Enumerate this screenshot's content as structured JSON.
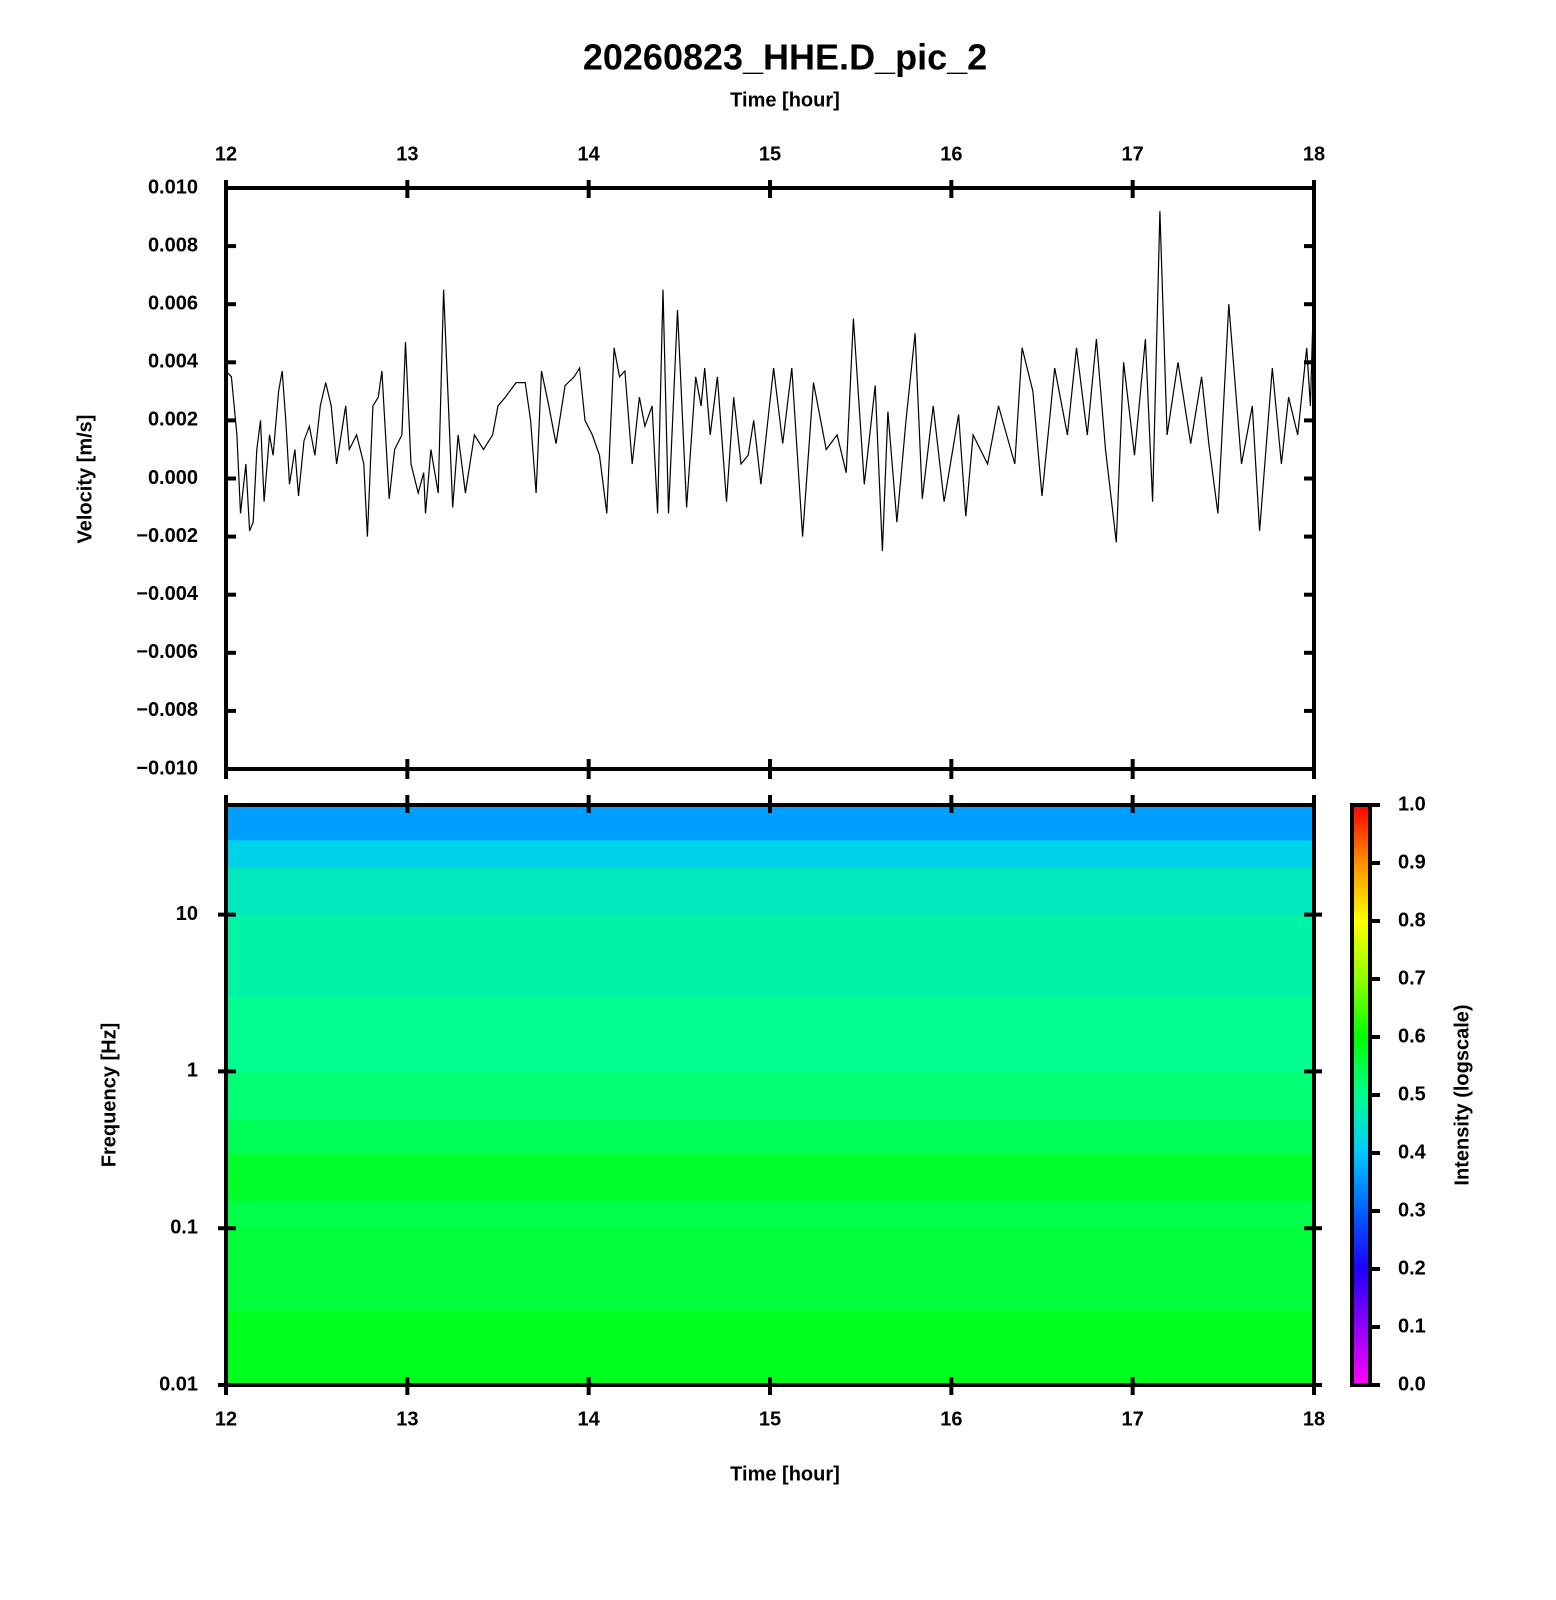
{
  "chart_data": [
    {
      "type": "line",
      "title": "20260823_HHE.D_pic_2",
      "x_label": "Time [hour]",
      "y_label": "Velocity [m/s]",
      "color": "#000000",
      "xlim": [
        12,
        18
      ],
      "xticks": [
        12,
        13,
        14,
        15,
        16,
        17,
        18
      ],
      "ylim": [
        -0.01,
        0.01
      ],
      "yticks": [
        {
          "value": 0.01,
          "label": "0.010"
        },
        {
          "value": 0.008,
          "label": "0.008"
        },
        {
          "value": 0.006,
          "label": "0.006"
        },
        {
          "value": 0.004,
          "label": "0.004"
        },
        {
          "value": 0.002,
          "label": "0.002"
        },
        {
          "value": 0,
          "label": "0.000"
        },
        {
          "value": -0.002,
          "label": "−0.002"
        },
        {
          "value": -0.004,
          "label": "−0.004"
        },
        {
          "value": -0.006,
          "label": "−0.006"
        },
        {
          "value": -0.008,
          "label": "−0.008"
        },
        {
          "value": -0.01,
          "label": "−0.010"
        }
      ],
      "x": [
        12.0,
        12.03,
        12.06,
        12.08,
        12.11,
        12.13,
        12.15,
        12.17,
        12.19,
        12.21,
        12.24,
        12.26,
        12.29,
        12.31,
        12.33,
        12.35,
        12.38,
        12.4,
        12.43,
        12.46,
        12.49,
        12.52,
        12.55,
        12.58,
        12.61,
        12.66,
        12.68,
        12.72,
        12.76,
        12.78,
        12.81,
        12.84,
        12.86,
        12.9,
        12.93,
        12.97,
        12.99,
        13.02,
        13.06,
        13.09,
        13.1,
        13.13,
        13.17,
        13.2,
        13.25,
        13.28,
        13.32,
        13.37,
        13.42,
        13.47,
        13.5,
        13.54,
        13.6,
        13.65,
        13.68,
        13.71,
        13.74,
        13.78,
        13.82,
        13.87,
        13.92,
        13.95,
        13.98,
        14.02,
        14.06,
        14.1,
        14.14,
        14.17,
        14.2,
        14.24,
        14.28,
        14.31,
        14.35,
        14.38,
        14.41,
        14.44,
        14.49,
        14.54,
        14.59,
        14.62,
        14.64,
        14.67,
        14.71,
        14.76,
        14.8,
        14.84,
        14.88,
        14.91,
        14.95,
        15.02,
        15.07,
        15.12,
        15.18,
        15.24,
        15.31,
        15.37,
        15.42,
        15.46,
        15.52,
        15.58,
        15.62,
        15.65,
        15.7,
        15.75,
        15.8,
        15.84,
        15.9,
        15.96,
        16.04,
        16.08,
        16.12,
        16.2,
        16.26,
        16.35,
        16.39,
        16.45,
        16.5,
        16.57,
        16.64,
        16.69,
        16.75,
        16.8,
        16.85,
        16.91,
        16.95,
        17.01,
        17.07,
        17.11,
        17.15,
        17.19,
        17.25,
        17.32,
        17.38,
        17.42,
        17.47,
        17.53,
        17.6,
        17.66,
        17.7,
        17.77,
        17.82,
        17.86,
        17.91,
        17.96,
        17.98,
        18.0
      ],
      "values": [
        0.0037,
        0.0035,
        0.0015,
        -0.0012,
        0.0005,
        -0.0018,
        -0.0015,
        0.001,
        0.002,
        -0.0008,
        0.0015,
        0.0008,
        0.003,
        0.0037,
        0.002,
        -0.0002,
        0.001,
        -0.0006,
        0.0013,
        0.0018,
        0.0008,
        0.0025,
        0.0033,
        0.0025,
        0.0005,
        0.0025,
        0.001,
        0.0015,
        0.0005,
        -0.002,
        0.0025,
        0.0028,
        0.0037,
        -0.0007,
        0.001,
        0.0015,
        0.0047,
        0.0005,
        -0.0005,
        0.0002,
        -0.0012,
        0.001,
        -0.0005,
        0.0065,
        -0.001,
        0.0015,
        -0.0005,
        0.0015,
        0.001,
        0.0015,
        0.0025,
        0.0028,
        0.0033,
        0.0033,
        0.002,
        -0.0005,
        0.0037,
        0.0025,
        0.0012,
        0.0032,
        0.0035,
        0.0038,
        0.002,
        0.0015,
        0.0008,
        -0.0012,
        0.0045,
        0.0035,
        0.0037,
        0.0005,
        0.0028,
        0.0018,
        0.0025,
        -0.0012,
        0.0065,
        -0.0012,
        0.0058,
        -0.001,
        0.0035,
        0.0025,
        0.0038,
        0.0015,
        0.0035,
        -0.0008,
        0.0028,
        0.0005,
        0.0008,
        0.002,
        -0.0002,
        0.0038,
        0.0012,
        0.0038,
        -0.002,
        0.0033,
        0.001,
        0.0015,
        0.0002,
        0.0055,
        -0.0002,
        0.0032,
        -0.0025,
        0.0023,
        -0.0015,
        0.002,
        0.005,
        -0.0007,
        0.0025,
        -0.0008,
        0.0022,
        -0.0013,
        0.0015,
        0.0005,
        0.0025,
        0.0005,
        0.0045,
        0.003,
        -0.0006,
        0.0038,
        0.0015,
        0.0045,
        0.0015,
        0.0048,
        0.001,
        -0.0022,
        0.004,
        0.0008,
        0.0048,
        -0.0008,
        0.0092,
        0.0015,
        0.004,
        0.0012,
        0.0035,
        0.0012,
        -0.0012,
        0.006,
        0.0005,
        0.0025,
        -0.0018,
        0.0038,
        0.0005,
        0.0028,
        0.0015,
        0.0045,
        0.0025,
        0.0068
      ]
    },
    {
      "type": "heatmap",
      "x_label": "Time [hour]",
      "y_label": "Frequency [Hz]",
      "yscale": "log",
      "xlim": [
        12,
        18
      ],
      "xticks": [
        12,
        13,
        14,
        15,
        16,
        17,
        18
      ],
      "ylim": [
        0.01,
        50
      ],
      "yticks": [
        0.01,
        0.1,
        1,
        10
      ],
      "xbins": [
        12,
        13,
        14,
        15,
        16,
        17,
        18
      ],
      "ybins": [
        0.01,
        0.03,
        0.1,
        0.15,
        0.3,
        0.5,
        1,
        3,
        10,
        20,
        30,
        50
      ],
      "values": [
        [
          0.58,
          0.58,
          0.58,
          0.58,
          0.58,
          0.58
        ],
        [
          0.56,
          0.56,
          0.56,
          0.56,
          0.56,
          0.56
        ],
        [
          0.55,
          0.55,
          0.55,
          0.55,
          0.55,
          0.55
        ],
        [
          0.57,
          0.57,
          0.57,
          0.57,
          0.57,
          0.57
        ],
        [
          0.54,
          0.54,
          0.54,
          0.54,
          0.54,
          0.54
        ],
        [
          0.52,
          0.52,
          0.52,
          0.52,
          0.52,
          0.52
        ],
        [
          0.5,
          0.5,
          0.5,
          0.5,
          0.5,
          0.5
        ],
        [
          0.48,
          0.48,
          0.48,
          0.48,
          0.48,
          0.48
        ],
        [
          0.46,
          0.46,
          0.46,
          0.46,
          0.46,
          0.46
        ],
        [
          0.42,
          0.42,
          0.42,
          0.42,
          0.42,
          0.42
        ],
        [
          0.36,
          0.36,
          0.36,
          0.36,
          0.36,
          0.36
        ]
      ],
      "colorbar": {
        "label": "Intensity (logscale)",
        "zlim": [
          0,
          1
        ],
        "ticks": [
          {
            "value": 0,
            "label": "0.0"
          },
          0.1,
          0.2,
          0.3,
          0.4,
          0.5,
          0.6,
          0.7,
          0.8,
          0.9,
          {
            "value": 1,
            "label": "1.0"
          }
        ],
        "colormap": [
          "#ff00ff",
          "#9000ff",
          "#2000ff",
          "#0060ff",
          "#00c8ff",
          "#00ff90",
          "#00ff00",
          "#90ff00",
          "#ffff00",
          "#ff9000",
          "#ff0000"
        ]
      }
    }
  ]
}
